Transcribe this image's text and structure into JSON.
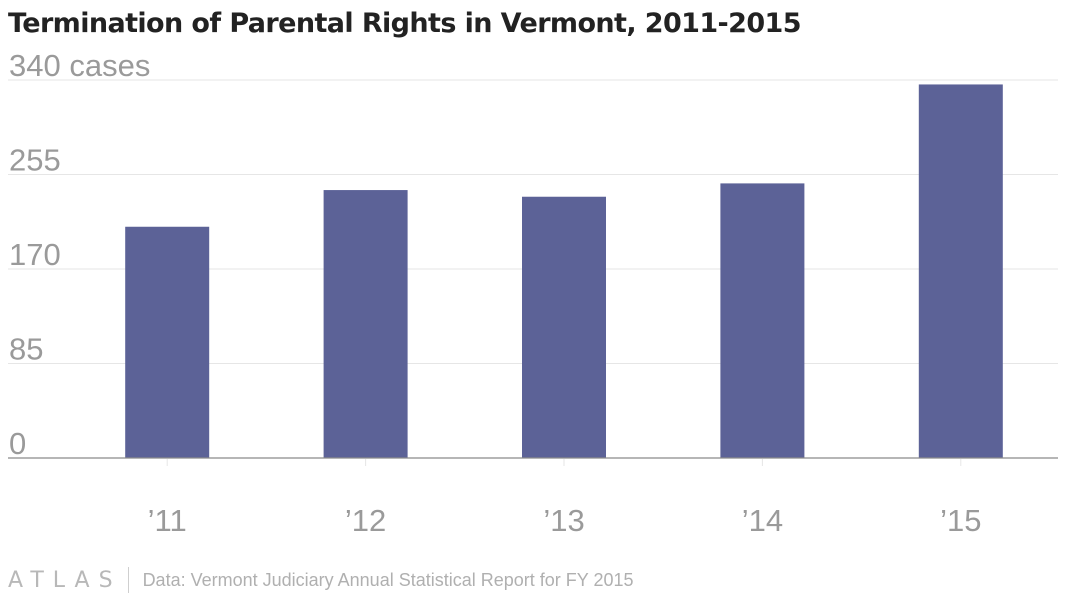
{
  "title": "Termination of Parental Rights in Vermont, 2011-2015",
  "footer": {
    "logo": "ATLAS",
    "source": "Data: Vermont Judiciary Annual Statistical Report for FY 2015"
  },
  "colors": {
    "bar": "#5c6297",
    "grid": "#e6e6e6",
    "axis": "#8a8a8a",
    "tick_text": "#9a9a9a"
  },
  "chart_data": {
    "type": "bar",
    "title": "Termination of Parental Rights in Vermont, 2011-2015",
    "xlabel": "",
    "ylabel": "",
    "categories": [
      "’11",
      "’12",
      "’13",
      "’14",
      "’15"
    ],
    "values": [
      208,
      241,
      235,
      247,
      336
    ],
    "ylim": [
      0,
      340
    ],
    "yticks": [
      0,
      85,
      170,
      255,
      340
    ],
    "ytick_labels": [
      "0",
      "85",
      "170",
      "255",
      "340 cases"
    ],
    "grid": true,
    "legend": "none"
  }
}
